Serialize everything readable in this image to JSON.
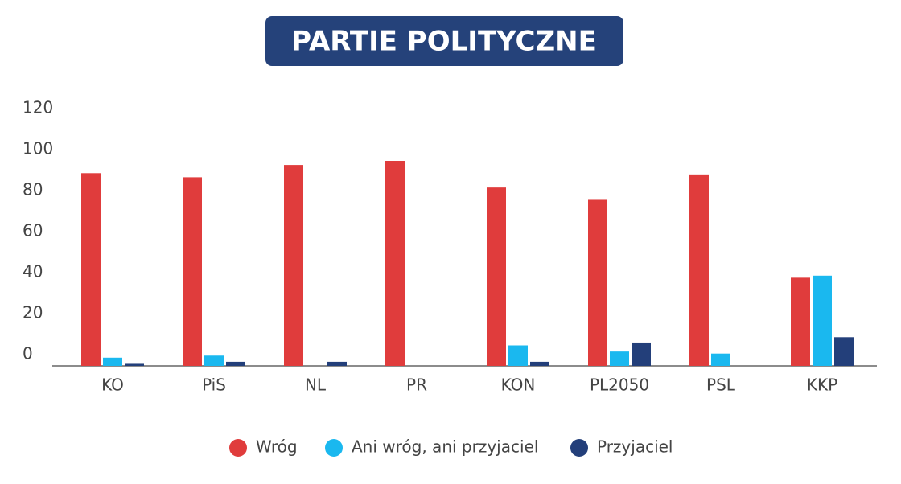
{
  "chart_data": {
    "type": "bar",
    "title": "PARTIE POLITYCZNE",
    "categories": [
      "KO",
      "PiS",
      "NL",
      "PR",
      "KON",
      "PL2050",
      "PSL",
      "KKP"
    ],
    "series": [
      {
        "name": "Wróg",
        "color": "#e03c3c",
        "values": [
          94,
          92,
          98,
          100,
          87,
          81,
          93,
          43
        ]
      },
      {
        "name": "Ani wróg, ani przyjaciel",
        "color": "#1ab8ef",
        "values": [
          4,
          5,
          0,
          0,
          10,
          7,
          6,
          44
        ]
      },
      {
        "name": "Przyjaciel",
        "color": "#233f7a",
        "values": [
          1,
          2,
          2,
          0,
          2,
          11,
          0,
          14
        ]
      }
    ],
    "ylim": [
      0,
      120
    ],
    "yticks": [
      0,
      20,
      40,
      60,
      80,
      100,
      120
    ],
    "grid": false,
    "legend": "bottom"
  }
}
